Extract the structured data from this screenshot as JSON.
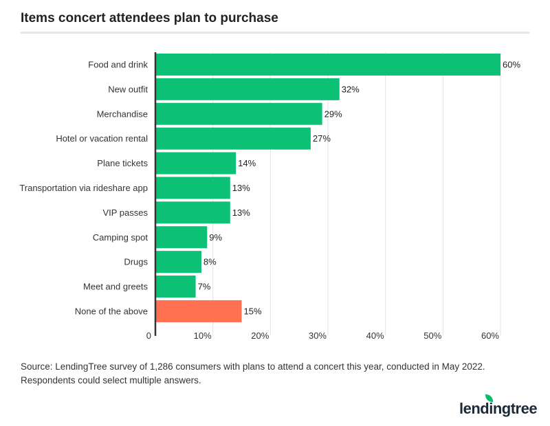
{
  "chart_data": {
    "type": "bar",
    "orientation": "horizontal",
    "title": "Items concert attendees plan to purchase",
    "categories": [
      "Food and drink",
      "New outfit",
      "Merchandise",
      "Hotel or vacation rental",
      "Plane tickets",
      "Transportation via rideshare app",
      "VIP passes",
      "Camping spot",
      "Drugs",
      "Meet and greets",
      "None of the above"
    ],
    "values": [
      60,
      32,
      29,
      27,
      14,
      13,
      13,
      9,
      8,
      7,
      15
    ],
    "data_labels": [
      "60%",
      "32%",
      "29%",
      "27%",
      "14%",
      "13%",
      "13%",
      "9%",
      "8%",
      "7%",
      "15%"
    ],
    "colors": [
      "#0cc076",
      "#0cc076",
      "#0cc076",
      "#0cc076",
      "#0cc076",
      "#0cc076",
      "#0cc076",
      "#0cc076",
      "#0cc076",
      "#0cc076",
      "#ff7150"
    ],
    "xlim": [
      0,
      60
    ],
    "xticks": [
      0,
      10,
      20,
      30,
      40,
      50,
      60
    ],
    "xtick_labels": [
      "0",
      "10%",
      "20%",
      "30%",
      "40%",
      "50%",
      "60%"
    ],
    "grid": true
  },
  "source": "Source: LendingTree survey of 1,286 consumers with plans to attend a concert this year, conducted in May 2022. Respondents could select multiple answers.",
  "logo": "lendingtree"
}
